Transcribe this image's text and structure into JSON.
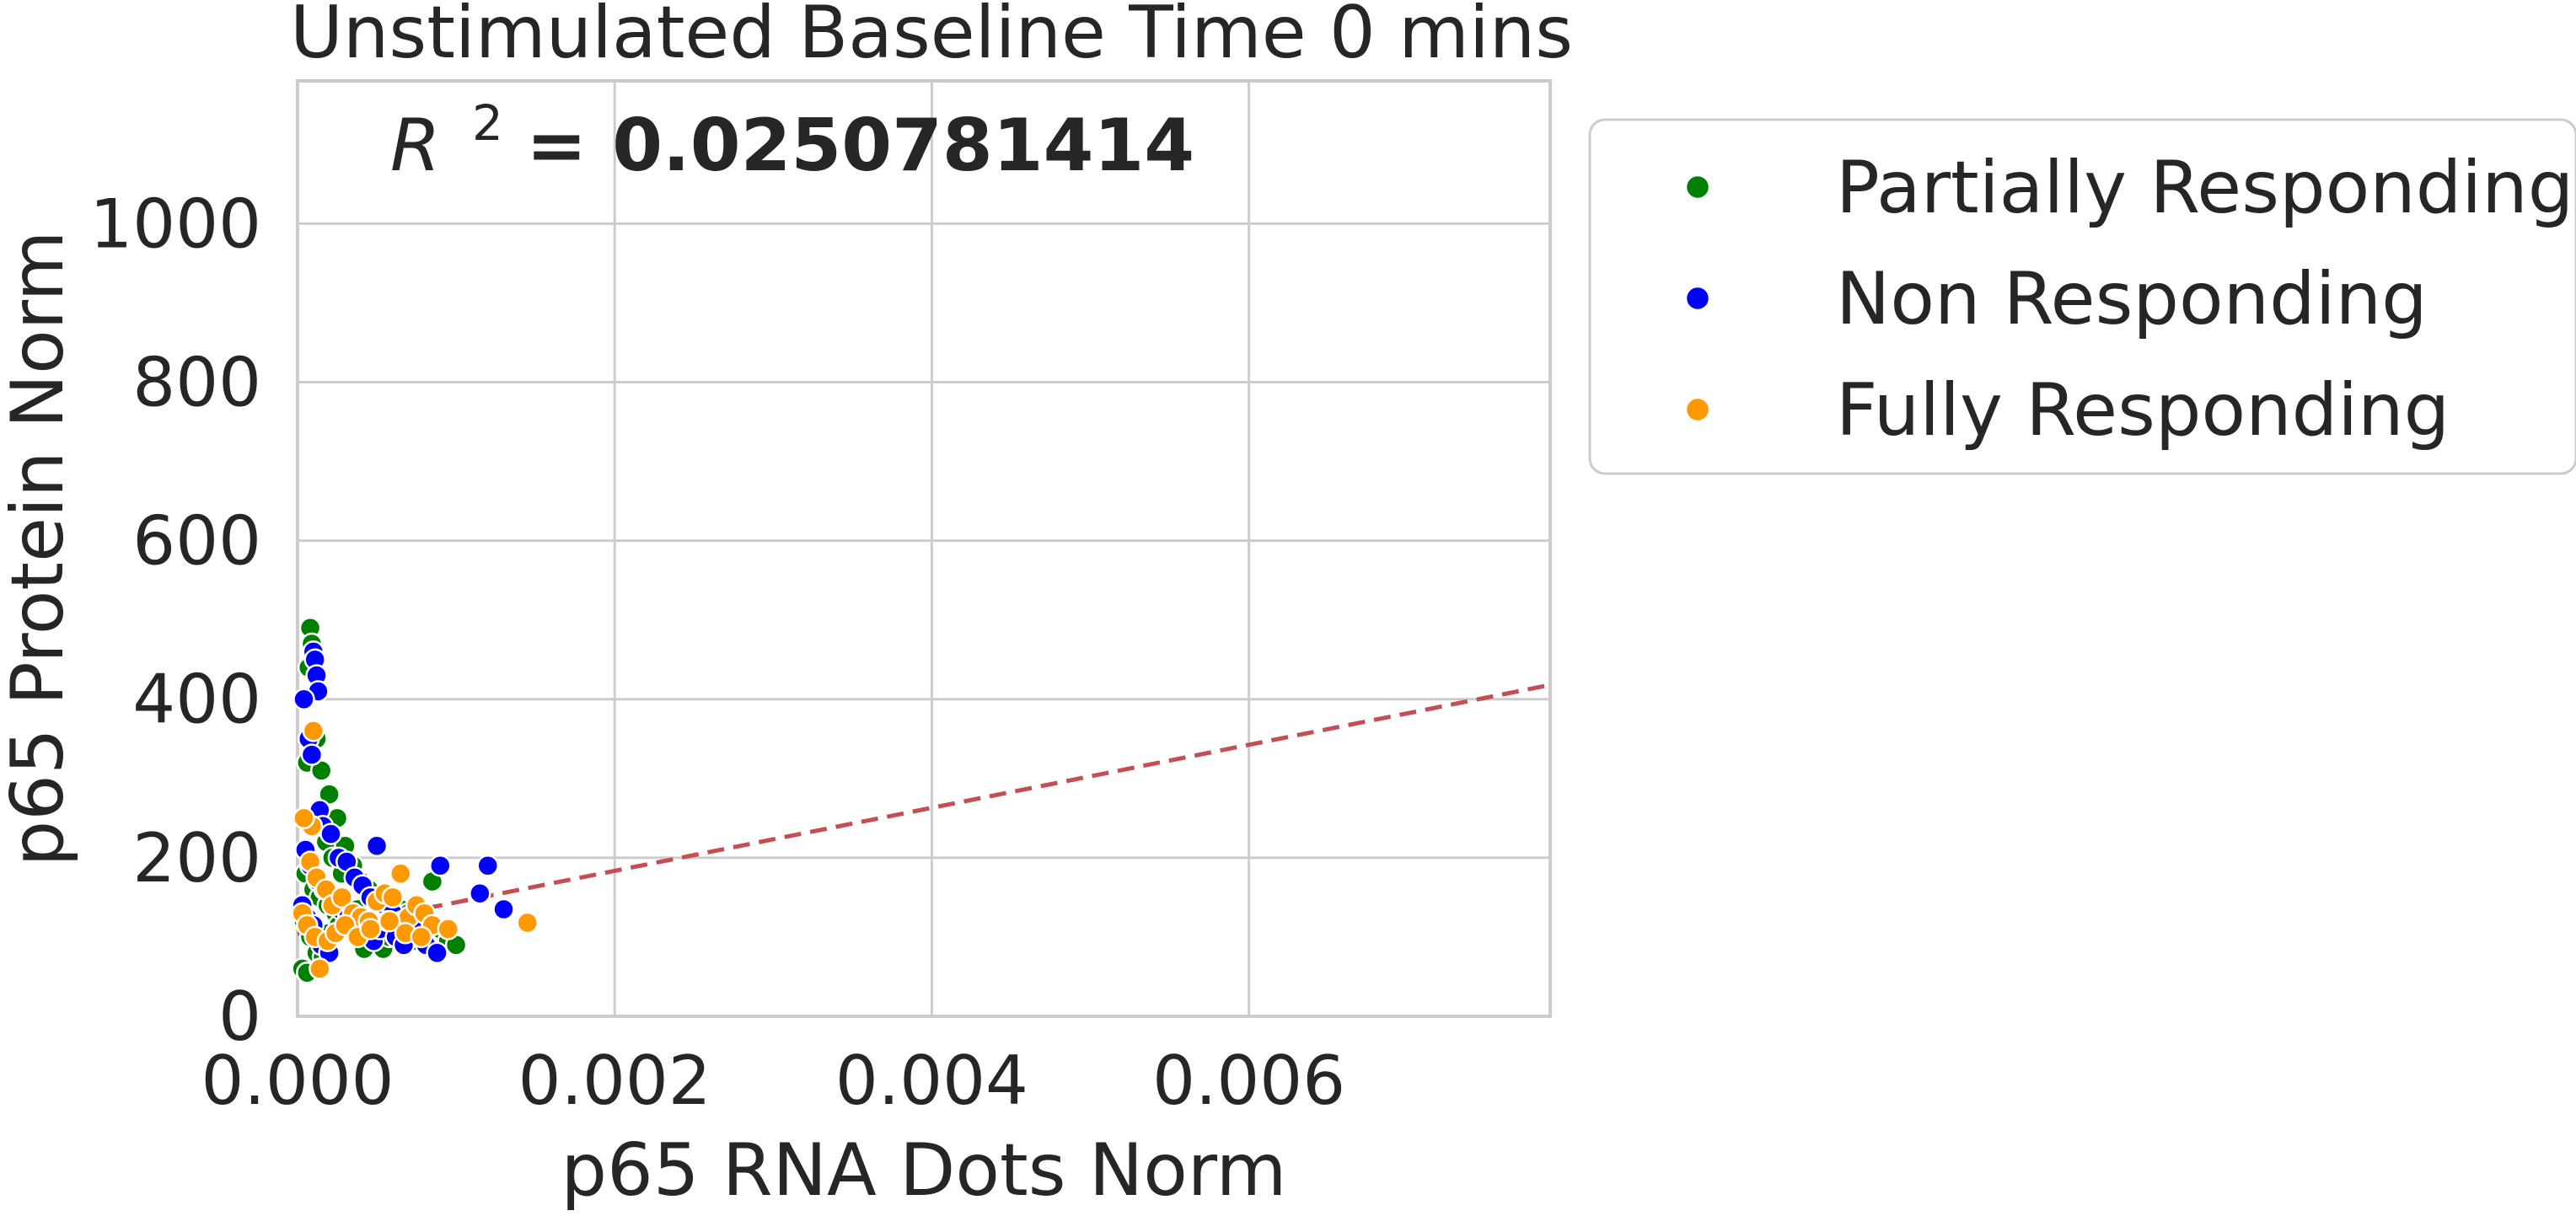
{
  "chart_data": {
    "type": "scatter",
    "title": "Unstimulated Baseline Time 0 mins",
    "xlabel": "p65 RNA Dots Norm",
    "ylabel": "p65 Protein Norm",
    "xlim": [
      0,
      0.0079
    ],
    "ylim": [
      0,
      1180
    ],
    "x_ticks": [
      "0.000",
      "0.002",
      "0.004",
      "0.006"
    ],
    "y_ticks": [
      "0",
      "200",
      "400",
      "600",
      "800",
      "1000"
    ],
    "grid": true,
    "legend_position": "outside-right",
    "annotation": {
      "r2_symbol": "R",
      "r2_exponent": "2",
      "r2_text": " = 0.0250781414"
    },
    "fit_line": {
      "style": "dashed",
      "color": "#c44e52",
      "points": [
        [
          0.0,
          104
        ],
        [
          0.0079,
          418
        ]
      ]
    },
    "series": [
      {
        "name": "Partially Responding",
        "color": "#008000",
        "points": [
          [
            8e-05,
            490
          ],
          [
            9e-05,
            470
          ],
          [
            7e-05,
            440
          ],
          [
            6e-05,
            320
          ],
          [
            0.00012,
            350
          ],
          [
            0.00015,
            310
          ],
          [
            0.0002,
            280
          ],
          [
            0.00025,
            250
          ],
          [
            0.00018,
            220
          ],
          [
            0.0003,
            215
          ],
          [
            0.00022,
            200
          ],
          [
            0.00035,
            190
          ],
          [
            0.00028,
            180
          ],
          [
            0.0004,
            170
          ],
          [
            0.00045,
            160
          ],
          [
            0.0005,
            150
          ],
          [
            0.00055,
            145
          ],
          [
            0.0006,
            140
          ],
          [
            0.00065,
            135
          ],
          [
            0.0007,
            130
          ],
          [
            0.00075,
            125
          ],
          [
            0.0008,
            120
          ],
          [
            0.00085,
            170
          ],
          [
            0.0009,
            110
          ],
          [
            0.00095,
            95
          ],
          [
            0.001,
            90
          ],
          [
            5e-05,
            180
          ],
          [
            0.0001,
            160
          ],
          [
            0.00014,
            150
          ],
          [
            0.00019,
            140
          ],
          [
            0.00024,
            130
          ],
          [
            0.00029,
            120
          ],
          [
            0.00034,
            110
          ],
          [
            0.00039,
            100
          ],
          [
            0.00044,
            95
          ],
          [
            0.00049,
            90
          ],
          [
            0.00054,
            85
          ],
          [
            4e-05,
            120
          ],
          [
            8e-05,
            100
          ],
          [
            0.00012,
            80
          ],
          [
            0.00016,
            75
          ],
          [
            3e-05,
            60
          ],
          [
            6e-05,
            55
          ],
          [
            0.0002,
            105
          ],
          [
            0.00026,
            115
          ],
          [
            0.00033,
            125
          ],
          [
            0.00038,
            135
          ],
          [
            0.00042,
            85
          ],
          [
            0.00058,
            100
          ],
          [
            0.00062,
            115
          ],
          [
            0.00068,
            105
          ],
          [
            0.00073,
            95
          ],
          [
            0.00078,
            110
          ]
        ]
      },
      {
        "name": "Non Responding",
        "color": "#0000ff",
        "points": [
          [
            0.0001,
            460
          ],
          [
            0.00011,
            450
          ],
          [
            0.00012,
            430
          ],
          [
            0.00013,
            410
          ],
          [
            4e-05,
            400
          ],
          [
            7e-05,
            350
          ],
          [
            9e-05,
            330
          ],
          [
            0.00014,
            260
          ],
          [
            0.00016,
            240
          ],
          [
            0.00021,
            230
          ],
          [
            0.00026,
            200
          ],
          [
            0.00031,
            195
          ],
          [
            0.00036,
            175
          ],
          [
            0.00041,
            165
          ],
          [
            0.00046,
            150
          ],
          [
            0.0005,
            215
          ],
          [
            0.00055,
            140
          ],
          [
            0.0006,
            130
          ],
          [
            0.00066,
            120
          ],
          [
            0.00071,
            110
          ],
          [
            0.00076,
            100
          ],
          [
            0.00081,
            90
          ],
          [
            0.00088,
            80
          ],
          [
            0.0009,
            190
          ],
          [
            0.0012,
            190
          ],
          [
            0.00115,
            155
          ],
          [
            0.0013,
            135
          ],
          [
            5e-05,
            210
          ],
          [
            8e-05,
            190
          ],
          [
            0.00013,
            170
          ],
          [
            0.00017,
            160
          ],
          [
            0.00023,
            145
          ],
          [
            0.00027,
            135
          ],
          [
            0.00032,
            125
          ],
          [
            0.00037,
            115
          ],
          [
            0.00043,
            105
          ],
          [
            0.00048,
            95
          ],
          [
            0.00052,
            110
          ],
          [
            0.00057,
            120
          ],
          [
            0.00062,
            100
          ],
          [
            0.00067,
            90
          ],
          [
            0.00072,
            115
          ],
          [
            3e-05,
            140
          ],
          [
            6e-05,
            125
          ],
          [
            0.0001,
            115
          ],
          [
            0.00015,
            90
          ],
          [
            0.0002,
            80
          ]
        ]
      },
      {
        "name": "Fully Responding",
        "color": "#ff9900",
        "points": [
          [
            0.0001,
            360
          ],
          [
            9e-05,
            240
          ],
          [
            4e-05,
            250
          ],
          [
            8e-05,
            195
          ],
          [
            0.00012,
            175
          ],
          [
            0.00018,
            160
          ],
          [
            0.00022,
            140
          ],
          [
            0.00028,
            150
          ],
          [
            0.00035,
            130
          ],
          [
            0.0004,
            125
          ],
          [
            0.00045,
            120
          ],
          [
            0.0005,
            145
          ],
          [
            0.00055,
            155
          ],
          [
            0.0006,
            150
          ],
          [
            0.00065,
            180
          ],
          [
            0.0007,
            125
          ],
          [
            0.00075,
            140
          ],
          [
            0.0008,
            130
          ],
          [
            0.00085,
            115
          ],
          [
            0.00095,
            110
          ],
          [
            0.00145,
            118
          ],
          [
            3e-05,
            130
          ],
          [
            6e-05,
            115
          ],
          [
            0.00011,
            100
          ],
          [
            0.00014,
            60
          ],
          [
            0.00019,
            95
          ],
          [
            0.00024,
            105
          ],
          [
            0.0003,
            115
          ],
          [
            0.00038,
            100
          ],
          [
            0.00046,
            110
          ],
          [
            0.00058,
            120
          ],
          [
            0.00068,
            105
          ],
          [
            0.00078,
            100
          ]
        ]
      }
    ]
  }
}
